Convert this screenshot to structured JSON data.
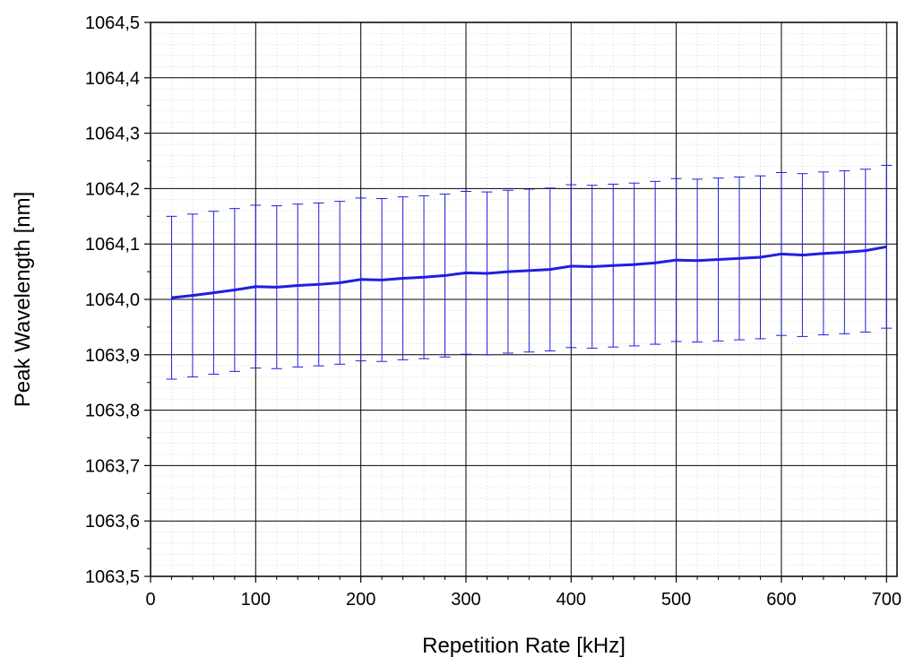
{
  "chart_data": {
    "type": "line",
    "title": "",
    "xlabel": "Repetition Rate [kHz]",
    "ylabel": "Peak Wavelength [nm]",
    "xlim": [
      0,
      710
    ],
    "ylim": [
      1063.5,
      1064.5
    ],
    "x_ticks": [
      0,
      100,
      200,
      300,
      400,
      500,
      600,
      700
    ],
    "x_tick_labels": [
      "0",
      "100",
      "200",
      "300",
      "400",
      "500",
      "600",
      "700"
    ],
    "y_ticks": [
      1063.5,
      1063.6,
      1063.7,
      1063.8,
      1063.9,
      1064.0,
      1064.1,
      1064.2,
      1064.3,
      1064.4,
      1064.5
    ],
    "y_tick_labels": [
      "1063,5",
      "1063,6",
      "1063,7",
      "1063,8",
      "1063,9",
      "1064,0",
      "1064,1",
      "1064,2",
      "1064,3",
      "1064,4",
      "1064,5"
    ],
    "grid": true,
    "minor_grid": true,
    "legend": "none",
    "color": "#1f1fe0",
    "series": [
      {
        "x": [
          20,
          40,
          60,
          80,
          100,
          120,
          140,
          160,
          180,
          200,
          220,
          240,
          260,
          280,
          300,
          320,
          340,
          360,
          380,
          400,
          420,
          440,
          460,
          480,
          500,
          520,
          540,
          560,
          580,
          600,
          620,
          640,
          660,
          680,
          700
        ],
        "y": [
          1064.003,
          1064.007,
          1064.012,
          1064.017,
          1064.023,
          1064.022,
          1064.025,
          1064.027,
          1064.03,
          1064.036,
          1064.035,
          1064.038,
          1064.04,
          1064.043,
          1064.048,
          1064.047,
          1064.05,
          1064.052,
          1064.054,
          1064.06,
          1064.059,
          1064.061,
          1064.063,
          1064.066,
          1064.071,
          1064.07,
          1064.072,
          1064.074,
          1064.076,
          1064.082,
          1064.08,
          1064.083,
          1064.085,
          1064.088,
          1064.095
        ],
        "error": 0.147
      }
    ]
  }
}
